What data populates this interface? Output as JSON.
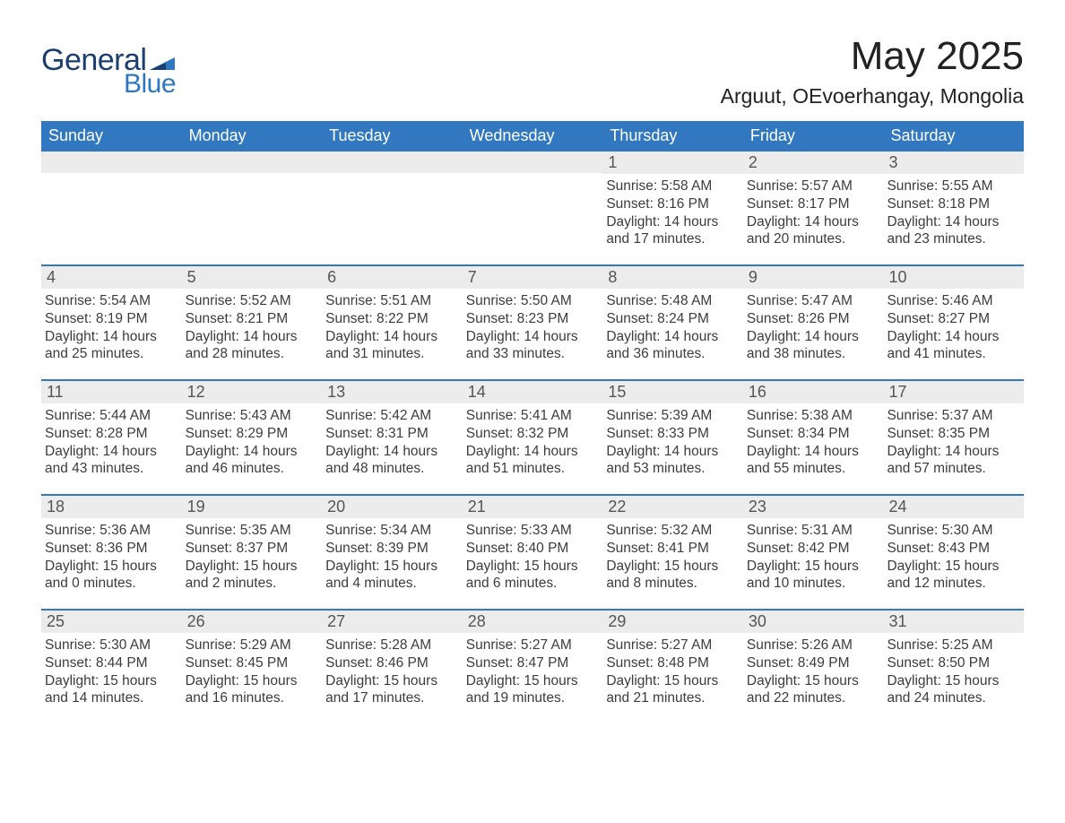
{
  "logo": {
    "general": "General",
    "blue": "Blue"
  },
  "title": "May 2025",
  "location": "Arguut, OEvoerhangay, Mongolia",
  "colors": {
    "header_bg": "#3178c0",
    "header_text": "#ffffff",
    "daynum_bg": "#ececec",
    "week_border": "#3178c0",
    "body_text": "#3c3c3c",
    "logo_dark": "#1b3e6f",
    "logo_light": "#2e78c2",
    "page_bg": "#ffffff"
  },
  "dow": [
    "Sunday",
    "Monday",
    "Tuesday",
    "Wednesday",
    "Thursday",
    "Friday",
    "Saturday"
  ],
  "weeks": [
    [
      {
        "empty": true
      },
      {
        "empty": true
      },
      {
        "empty": true
      },
      {
        "empty": true
      },
      {
        "day": "1",
        "sunrise": "Sunrise: 5:58 AM",
        "sunset": "Sunset: 8:16 PM",
        "dl1": "Daylight: 14 hours",
        "dl2": "and 17 minutes."
      },
      {
        "day": "2",
        "sunrise": "Sunrise: 5:57 AM",
        "sunset": "Sunset: 8:17 PM",
        "dl1": "Daylight: 14 hours",
        "dl2": "and 20 minutes."
      },
      {
        "day": "3",
        "sunrise": "Sunrise: 5:55 AM",
        "sunset": "Sunset: 8:18 PM",
        "dl1": "Daylight: 14 hours",
        "dl2": "and 23 minutes."
      }
    ],
    [
      {
        "day": "4",
        "sunrise": "Sunrise: 5:54 AM",
        "sunset": "Sunset: 8:19 PM",
        "dl1": "Daylight: 14 hours",
        "dl2": "and 25 minutes."
      },
      {
        "day": "5",
        "sunrise": "Sunrise: 5:52 AM",
        "sunset": "Sunset: 8:21 PM",
        "dl1": "Daylight: 14 hours",
        "dl2": "and 28 minutes."
      },
      {
        "day": "6",
        "sunrise": "Sunrise: 5:51 AM",
        "sunset": "Sunset: 8:22 PM",
        "dl1": "Daylight: 14 hours",
        "dl2": "and 31 minutes."
      },
      {
        "day": "7",
        "sunrise": "Sunrise: 5:50 AM",
        "sunset": "Sunset: 8:23 PM",
        "dl1": "Daylight: 14 hours",
        "dl2": "and 33 minutes."
      },
      {
        "day": "8",
        "sunrise": "Sunrise: 5:48 AM",
        "sunset": "Sunset: 8:24 PM",
        "dl1": "Daylight: 14 hours",
        "dl2": "and 36 minutes."
      },
      {
        "day": "9",
        "sunrise": "Sunrise: 5:47 AM",
        "sunset": "Sunset: 8:26 PM",
        "dl1": "Daylight: 14 hours",
        "dl2": "and 38 minutes."
      },
      {
        "day": "10",
        "sunrise": "Sunrise: 5:46 AM",
        "sunset": "Sunset: 8:27 PM",
        "dl1": "Daylight: 14 hours",
        "dl2": "and 41 minutes."
      }
    ],
    [
      {
        "day": "11",
        "sunrise": "Sunrise: 5:44 AM",
        "sunset": "Sunset: 8:28 PM",
        "dl1": "Daylight: 14 hours",
        "dl2": "and 43 minutes."
      },
      {
        "day": "12",
        "sunrise": "Sunrise: 5:43 AM",
        "sunset": "Sunset: 8:29 PM",
        "dl1": "Daylight: 14 hours",
        "dl2": "and 46 minutes."
      },
      {
        "day": "13",
        "sunrise": "Sunrise: 5:42 AM",
        "sunset": "Sunset: 8:31 PM",
        "dl1": "Daylight: 14 hours",
        "dl2": "and 48 minutes."
      },
      {
        "day": "14",
        "sunrise": "Sunrise: 5:41 AM",
        "sunset": "Sunset: 8:32 PM",
        "dl1": "Daylight: 14 hours",
        "dl2": "and 51 minutes."
      },
      {
        "day": "15",
        "sunrise": "Sunrise: 5:39 AM",
        "sunset": "Sunset: 8:33 PM",
        "dl1": "Daylight: 14 hours",
        "dl2": "and 53 minutes."
      },
      {
        "day": "16",
        "sunrise": "Sunrise: 5:38 AM",
        "sunset": "Sunset: 8:34 PM",
        "dl1": "Daylight: 14 hours",
        "dl2": "and 55 minutes."
      },
      {
        "day": "17",
        "sunrise": "Sunrise: 5:37 AM",
        "sunset": "Sunset: 8:35 PM",
        "dl1": "Daylight: 14 hours",
        "dl2": "and 57 minutes."
      }
    ],
    [
      {
        "day": "18",
        "sunrise": "Sunrise: 5:36 AM",
        "sunset": "Sunset: 8:36 PM",
        "dl1": "Daylight: 15 hours",
        "dl2": "and 0 minutes."
      },
      {
        "day": "19",
        "sunrise": "Sunrise: 5:35 AM",
        "sunset": "Sunset: 8:37 PM",
        "dl1": "Daylight: 15 hours",
        "dl2": "and 2 minutes."
      },
      {
        "day": "20",
        "sunrise": "Sunrise: 5:34 AM",
        "sunset": "Sunset: 8:39 PM",
        "dl1": "Daylight: 15 hours",
        "dl2": "and 4 minutes."
      },
      {
        "day": "21",
        "sunrise": "Sunrise: 5:33 AM",
        "sunset": "Sunset: 8:40 PM",
        "dl1": "Daylight: 15 hours",
        "dl2": "and 6 minutes."
      },
      {
        "day": "22",
        "sunrise": "Sunrise: 5:32 AM",
        "sunset": "Sunset: 8:41 PM",
        "dl1": "Daylight: 15 hours",
        "dl2": "and 8 minutes."
      },
      {
        "day": "23",
        "sunrise": "Sunrise: 5:31 AM",
        "sunset": "Sunset: 8:42 PM",
        "dl1": "Daylight: 15 hours",
        "dl2": "and 10 minutes."
      },
      {
        "day": "24",
        "sunrise": "Sunrise: 5:30 AM",
        "sunset": "Sunset: 8:43 PM",
        "dl1": "Daylight: 15 hours",
        "dl2": "and 12 minutes."
      }
    ],
    [
      {
        "day": "25",
        "sunrise": "Sunrise: 5:30 AM",
        "sunset": "Sunset: 8:44 PM",
        "dl1": "Daylight: 15 hours",
        "dl2": "and 14 minutes."
      },
      {
        "day": "26",
        "sunrise": "Sunrise: 5:29 AM",
        "sunset": "Sunset: 8:45 PM",
        "dl1": "Daylight: 15 hours",
        "dl2": "and 16 minutes."
      },
      {
        "day": "27",
        "sunrise": "Sunrise: 5:28 AM",
        "sunset": "Sunset: 8:46 PM",
        "dl1": "Daylight: 15 hours",
        "dl2": "and 17 minutes."
      },
      {
        "day": "28",
        "sunrise": "Sunrise: 5:27 AM",
        "sunset": "Sunset: 8:47 PM",
        "dl1": "Daylight: 15 hours",
        "dl2": "and 19 minutes."
      },
      {
        "day": "29",
        "sunrise": "Sunrise: 5:27 AM",
        "sunset": "Sunset: 8:48 PM",
        "dl1": "Daylight: 15 hours",
        "dl2": "and 21 minutes."
      },
      {
        "day": "30",
        "sunrise": "Sunrise: 5:26 AM",
        "sunset": "Sunset: 8:49 PM",
        "dl1": "Daylight: 15 hours",
        "dl2": "and 22 minutes."
      },
      {
        "day": "31",
        "sunrise": "Sunrise: 5:25 AM",
        "sunset": "Sunset: 8:50 PM",
        "dl1": "Daylight: 15 hours",
        "dl2": "and 24 minutes."
      }
    ]
  ]
}
